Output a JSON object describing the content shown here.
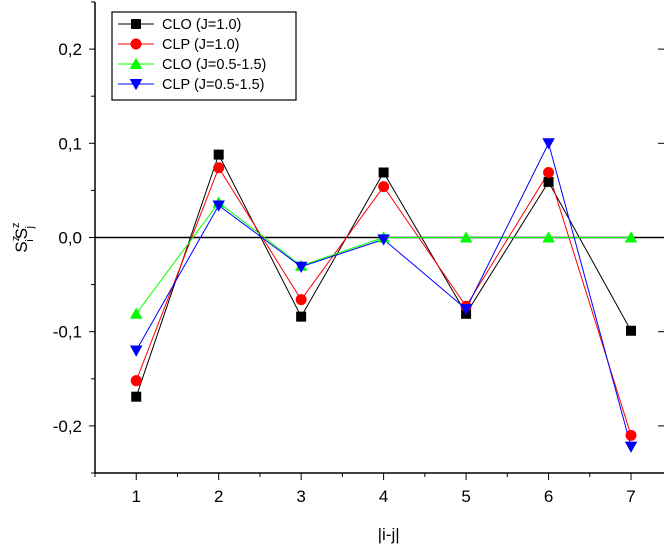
{
  "chart_data": {
    "type": "line",
    "xlabel": "|i-j|",
    "ylabel": {
      "base": "S",
      "sub1": "i",
      "sup1": "z",
      "sub2": "j",
      "sup2": "z"
    },
    "x": [
      1,
      2,
      3,
      4,
      5,
      6,
      7
    ],
    "xticks": [
      "1",
      "2",
      "3",
      "4",
      "5",
      "6",
      "7"
    ],
    "xlim": [
      0.5,
      7.4
    ],
    "ylim": [
      -0.25,
      0.25
    ],
    "yticks": [
      {
        "value": 0.2,
        "label": "0,2"
      },
      {
        "value": 0.1,
        "label": "0,1"
      },
      {
        "value": 0.0,
        "label": "0,0"
      },
      {
        "value": -0.1,
        "label": "-0,1"
      },
      {
        "value": -0.2,
        "label": "-0,2"
      }
    ],
    "zero_line": true,
    "grid": false,
    "legend_position": "top-left",
    "series": [
      {
        "name": "CLO (J=1.0)",
        "color": "#000000",
        "marker": "square",
        "values": [
          -0.169,
          0.088,
          -0.084,
          0.069,
          -0.081,
          0.059,
          -0.099
        ]
      },
      {
        "name": "CLP (J=1.0)",
        "color": "#ff0000",
        "marker": "circle",
        "values": [
          -0.152,
          0.074,
          -0.066,
          0.054,
          -0.073,
          0.069,
          -0.21
        ]
      },
      {
        "name": "CLO (J=0.5-1.5)",
        "color": "#00ff00",
        "marker": "triangle-up",
        "values": [
          -0.081,
          0.037,
          -0.03,
          0.0,
          0.0,
          0.0,
          0.0
        ]
      },
      {
        "name": "CLP (J=0.5-1.5)",
        "color": "#0000ff",
        "marker": "triangle-down",
        "values": [
          -0.12,
          0.034,
          -0.031,
          -0.002,
          -0.076,
          0.1,
          -0.222
        ]
      }
    ]
  }
}
